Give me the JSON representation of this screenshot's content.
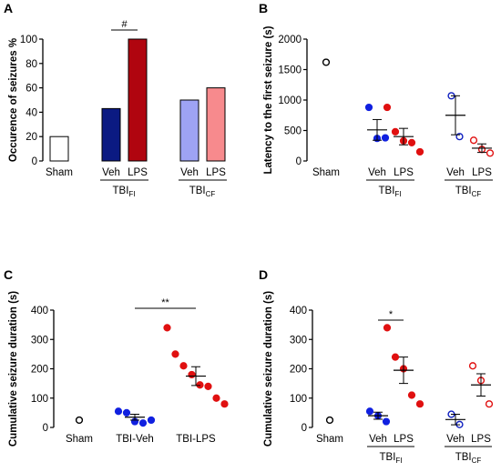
{
  "chart_data": [
    {
      "panel": "A",
      "type": "bar",
      "ylabel": "Occurence of seizures %",
      "ylim": [
        0,
        100
      ],
      "yticks": [
        0,
        20,
        40,
        60,
        80,
        100
      ],
      "categories": [
        "Sham",
        "Veh",
        "LPS",
        "Veh",
        "LPS"
      ],
      "values": [
        20,
        43,
        100,
        50,
        60
      ],
      "colors": [
        "#ffffff",
        "#0b1a82",
        "#b0050f",
        "#9ea3f4",
        "#f78a8d"
      ],
      "groups": [
        {
          "base": "TBI",
          "sub": "FI"
        },
        {
          "base": "TBI",
          "sub": "CF"
        }
      ],
      "annotation": "#"
    },
    {
      "panel": "B",
      "type": "scatter",
      "ylabel": "Latency to the first seizure (s)",
      "ylim": [
        0,
        2000
      ],
      "yticks": [
        0,
        500,
        1000,
        1500,
        2000
      ],
      "categories": [
        "Sham",
        "Veh",
        "LPS",
        "Veh",
        "LPS"
      ],
      "series": [
        {
          "points": [
            1620
          ],
          "mean": null,
          "sem": null,
          "color": "#000000",
          "filled": false
        },
        {
          "points": [
            880,
            370,
            380
          ],
          "mean": 510,
          "sem": 170,
          "color": "#1020e0",
          "filled": true
        },
        {
          "points": [
            880,
            480,
            330,
            300,
            150
          ],
          "mean": 400,
          "sem": 135,
          "color": "#e01010",
          "filled": true
        },
        {
          "points": [
            1070,
            400
          ],
          "mean": 750,
          "sem": 320,
          "color": "#1020c0",
          "filled": false
        },
        {
          "points": [
            340,
            190,
            130
          ],
          "mean": 210,
          "sem": 70,
          "color": "#e01010",
          "filled": false
        }
      ],
      "groups": [
        {
          "base": "TBI",
          "sub": "FI"
        },
        {
          "base": "TBI",
          "sub": "CF"
        }
      ]
    },
    {
      "panel": "C",
      "type": "scatter",
      "ylabel": "Cumulative seizure duration (s)",
      "ylim": [
        0,
        400
      ],
      "yticks": [
        0,
        100,
        200,
        300,
        400
      ],
      "categories": [
        "Sham",
        "TBI-Veh",
        "TBI-LPS"
      ],
      "series": [
        {
          "points": [
            25
          ],
          "mean": null,
          "sem": null,
          "color": "#000000",
          "filled": false
        },
        {
          "points": [
            55,
            50,
            20,
            15,
            25
          ],
          "mean": 35,
          "sem": 10,
          "color": "#1020e0",
          "filled": true
        },
        {
          "points": [
            340,
            250,
            210,
            180,
            145,
            140,
            100,
            80
          ],
          "mean": 175,
          "sem": 32,
          "color": "#e01010",
          "filled": true
        }
      ],
      "annotation": "**"
    },
    {
      "panel": "D",
      "type": "scatter",
      "ylabel": "Cumulative seizure duration (s)",
      "ylim": [
        0,
        400
      ],
      "yticks": [
        0,
        100,
        200,
        300,
        400
      ],
      "categories": [
        "Sham",
        "Veh",
        "LPS",
        "Veh",
        "LPS"
      ],
      "series": [
        {
          "points": [
            25
          ],
          "mean": null,
          "sem": null,
          "color": "#000000",
          "filled": false
        },
        {
          "points": [
            55,
            40,
            20
          ],
          "mean": 40,
          "sem": 12,
          "color": "#1020e0",
          "filled": true
        },
        {
          "points": [
            340,
            240,
            200,
            110,
            80
          ],
          "mean": 195,
          "sem": 45,
          "color": "#e01010",
          "filled": true
        },
        {
          "points": [
            45,
            10
          ],
          "mean": 27,
          "sem": 18,
          "color": "#1020c0",
          "filled": false
        },
        {
          "points": [
            210,
            160,
            80
          ],
          "mean": 145,
          "sem": 38,
          "color": "#e01010",
          "filled": false
        }
      ],
      "groups": [
        {
          "base": "TBI",
          "sub": "FI"
        },
        {
          "base": "TBI",
          "sub": "CF"
        }
      ],
      "annotation": "*"
    }
  ]
}
